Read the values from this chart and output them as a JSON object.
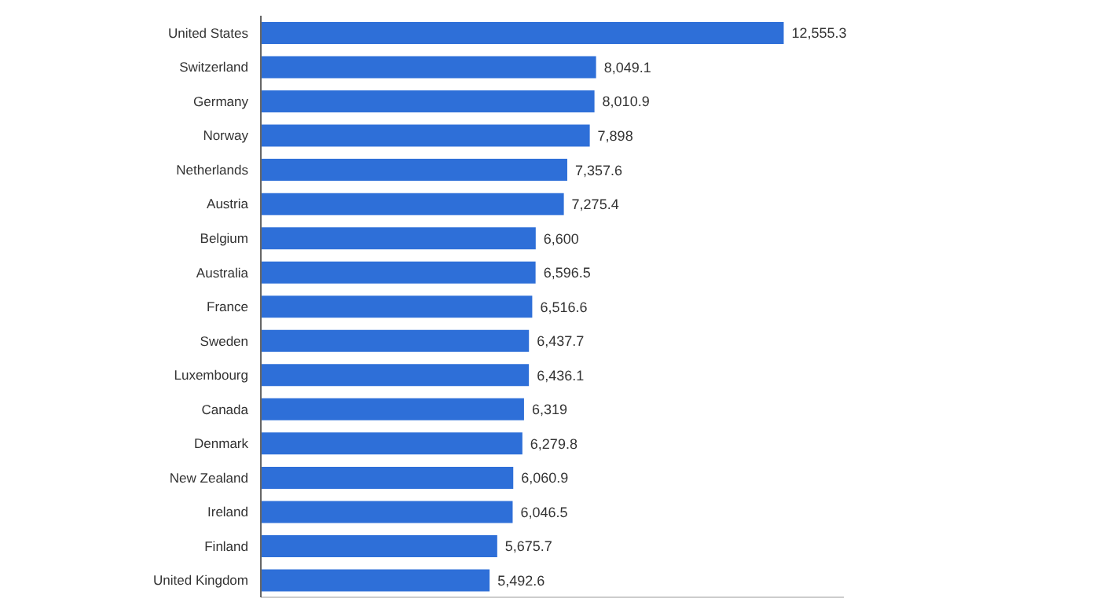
{
  "chart_data": {
    "type": "bar",
    "orientation": "horizontal",
    "categories": [
      "United States",
      "Switzerland",
      "Germany",
      "Norway",
      "Netherlands",
      "Austria",
      "Belgium",
      "Australia",
      "France",
      "Sweden",
      "Luxembourg",
      "Canada",
      "Denmark",
      "New Zealand",
      "Ireland",
      "Finland",
      "United Kingdom"
    ],
    "values": [
      12555.3,
      8049.1,
      8010.9,
      7898,
      7357.6,
      7275.4,
      6600,
      6596.5,
      6516.6,
      6437.7,
      6436.1,
      6319,
      6279.8,
      6060.9,
      6046.5,
      5675.7,
      5492.6
    ],
    "value_labels": [
      "12,555.3",
      "8,049.1",
      "8,010.9",
      "7,898",
      "7,357.6",
      "7,275.4",
      "6,600",
      "6,596.5",
      "6,516.6",
      "6,437.7",
      "6,436.1",
      "6,319",
      "6,279.8",
      "6,060.9",
      "6,046.5",
      "5,675.7",
      "5,492.6"
    ],
    "color": "#2e6fd8",
    "tick_labels": "y",
    "legend": false
  }
}
